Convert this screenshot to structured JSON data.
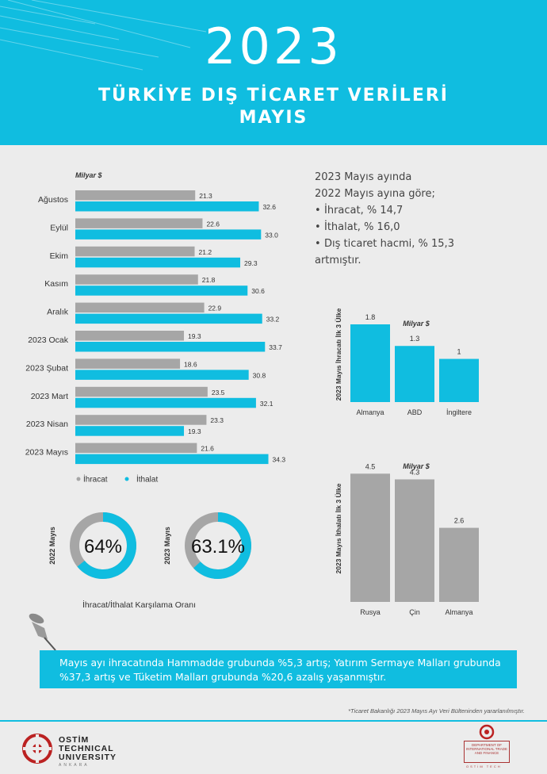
{
  "header": {
    "year": "2023",
    "title_line1": "TÜRKİYE DIŞ TİCARET VERİLERİ",
    "title_line2": "MAYIS"
  },
  "colors": {
    "accent": "#10bde0",
    "export_gray": "#a6a6a6",
    "background": "#ececec",
    "banner": "#10bde0"
  },
  "summary": {
    "line1": "2023 Mayıs ayında",
    "line2": "2022  Mayıs ayına göre;",
    "items": [
      "İhracat, % 14,7",
      "İthalat, % 16,0",
      "Dış ticaret hacmi, % 15,3"
    ],
    "line_end": "artmıştır."
  },
  "chart_data": [
    {
      "type": "bar",
      "orientation": "horizontal",
      "unit_label": "Milyar $",
      "categories": [
        "Ağustos",
        "Eylül",
        "Ekim",
        "Kasım",
        "Aralık",
        "2023 Ocak",
        "2023 Şubat",
        "2023 Mart",
        "2023 Nisan",
        "2023 Mayıs"
      ],
      "series": [
        {
          "name": "İhracat",
          "color": "#a6a6a6",
          "values": [
            21.3,
            22.6,
            21.2,
            21.8,
            22.9,
            19.3,
            18.6,
            23.5,
            23.3,
            21.6
          ]
        },
        {
          "name": "İthalat",
          "color": "#10bde0",
          "values": [
            32.6,
            33.0,
            29.3,
            30.6,
            33.2,
            33.7,
            30.8,
            32.1,
            19.3,
            34.3
          ]
        }
      ],
      "value_labels": {
        "exports": [
          "21.3",
          "22.6",
          "21.2",
          "21.8",
          "22.9",
          "19.3",
          "18.6",
          "23.5",
          "23.3",
          "21.6"
        ],
        "imports": [
          "32.6",
          "33.0",
          "29.3",
          "30.6",
          "33.2",
          "33.7",
          "30.8",
          "32.1",
          "19.3",
          "34.3"
        ]
      },
      "legend": [
        "İhracat",
        "İthalat"
      ],
      "legend_position": "bottom-left",
      "xlim": [
        0,
        35
      ]
    },
    {
      "type": "bar",
      "unit_label": "Milyar $",
      "ylabel": "2023 Mayıs İhracatı İlk 3 Ülke",
      "categories": [
        "Almanya",
        "ABD",
        "İngiltere"
      ],
      "values": [
        1.8,
        1.3,
        1
      ],
      "value_labels": [
        "1.8",
        "1.3",
        "1"
      ],
      "color": "#10bde0",
      "ylim": [
        0,
        2
      ]
    },
    {
      "type": "bar",
      "unit_label": "Milyar $",
      "ylabel": "2023 Mayıs İthalatı İlk 3 Ülke",
      "categories": [
        "Rusya",
        "Çin",
        "Almanya"
      ],
      "values": [
        4.5,
        4.3,
        2.6
      ],
      "value_labels": [
        "4.5",
        "4.3",
        "2.6"
      ],
      "color": "#a6a6a6",
      "ylim": [
        0,
        5
      ]
    },
    {
      "type": "pie",
      "subtype": "donut",
      "label": "2022 Mayıs",
      "value_text": "64%",
      "values": [
        64,
        36
      ],
      "colors": [
        "#10bde0",
        "#a6a6a6"
      ]
    },
    {
      "type": "pie",
      "subtype": "donut",
      "label": "2023 Mayıs",
      "value_text": "63.1%",
      "values": [
        63.1,
        36.9
      ],
      "colors": [
        "#10bde0",
        "#a6a6a6"
      ]
    }
  ],
  "donut_caption": "İhracat/İthalat Karşılama Oranı",
  "banner_text": "Mayıs ayı ihracatında Hammadde grubunda %5,3 artış; Yatırım Sermaye Malları grubunda %37,3 artış ve Tüketim Malları grubunda %20,6 azalış yaşanmıştır.",
  "footnote": "*Ticaret Bakanlığı 2023 Mayıs Ayı Veri Bülteninden yararlanılmıştır.",
  "logo": {
    "name_lines": [
      "OSTİM",
      "TECHNICAL",
      "UNIVERSITY"
    ],
    "city": "ANKARA",
    "dept": "DEPARTMENT OF INTERNATIONAL TRADE AND FINANCE",
    "dept_sub": "OSTİM TECH"
  }
}
